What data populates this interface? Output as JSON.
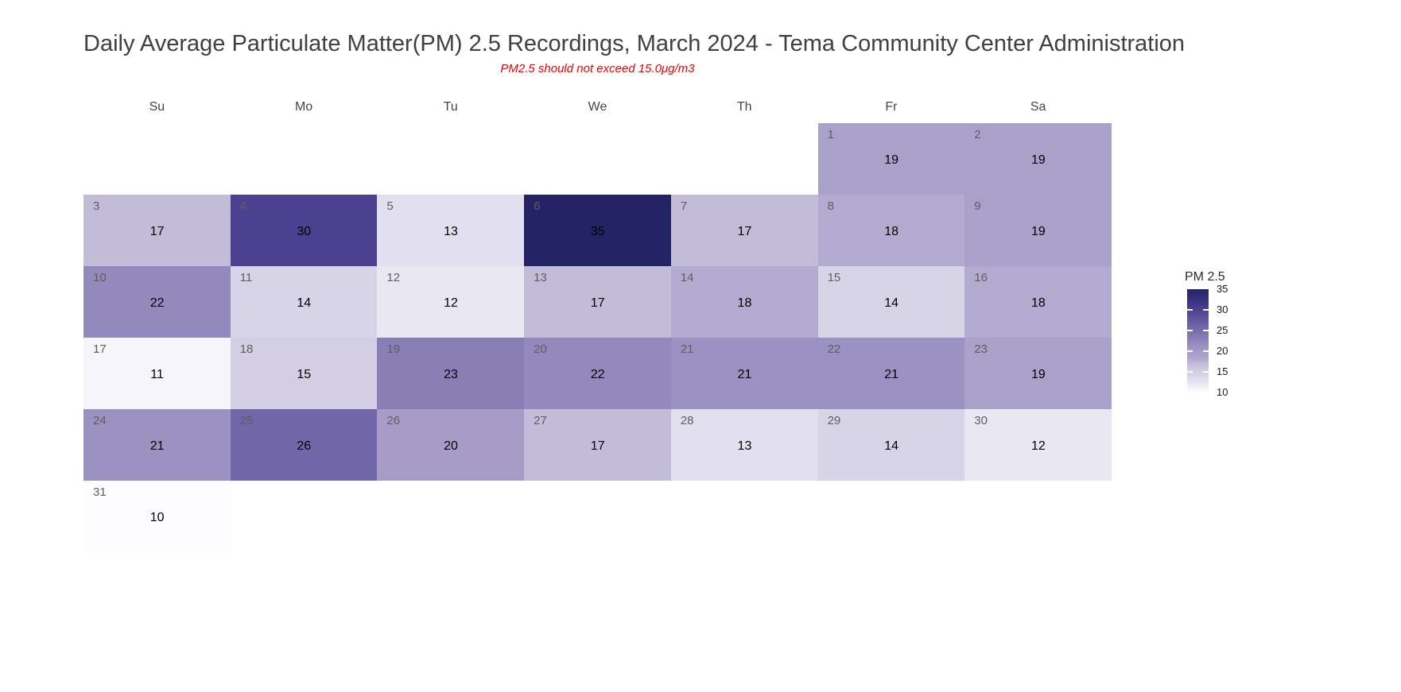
{
  "title": "Daily Average Particulate Matter(PM) 2.5 Recordings, March 2024 - Tema Community Center Administration",
  "subtitle": "PM2.5 should not exceed 15.0μg/m3",
  "colors": {
    "title_text": "#404040",
    "subtitle_text": "#f00000",
    "weekday_header_text": "#454545",
    "day_number_text": "#5e5e5e",
    "value_text": "#000000",
    "background": "#ffffff"
  },
  "chart_data": {
    "type": "heatmap",
    "subtype": "calendar-month",
    "title": "Daily Average Particulate Matter(PM) 2.5 Recordings, March 2024 - Tema Community Center Administration",
    "subtitle": "PM2.5 should not exceed 15.0μg/m3",
    "month": "March",
    "year": 2024,
    "value_name": "PM 2.5",
    "unit": "μg/m3",
    "threshold": 15.0,
    "grid": false,
    "weekday_headers": [
      "Su",
      "Mo",
      "Tu",
      "We",
      "Th",
      "Fr",
      "Sa"
    ],
    "days": [
      {
        "day": 1,
        "week": 0,
        "dow": 5,
        "value": 19
      },
      {
        "day": 2,
        "week": 0,
        "dow": 6,
        "value": 19
      },
      {
        "day": 3,
        "week": 1,
        "dow": 0,
        "value": 17
      },
      {
        "day": 4,
        "week": 1,
        "dow": 1,
        "value": 30
      },
      {
        "day": 5,
        "week": 1,
        "dow": 2,
        "value": 13
      },
      {
        "day": 6,
        "week": 1,
        "dow": 3,
        "value": 35
      },
      {
        "day": 7,
        "week": 1,
        "dow": 4,
        "value": 17
      },
      {
        "day": 8,
        "week": 1,
        "dow": 5,
        "value": 18
      },
      {
        "day": 9,
        "week": 1,
        "dow": 6,
        "value": 19
      },
      {
        "day": 10,
        "week": 2,
        "dow": 0,
        "value": 22
      },
      {
        "day": 11,
        "week": 2,
        "dow": 1,
        "value": 14
      },
      {
        "day": 12,
        "week": 2,
        "dow": 2,
        "value": 12
      },
      {
        "day": 13,
        "week": 2,
        "dow": 3,
        "value": 17
      },
      {
        "day": 14,
        "week": 2,
        "dow": 4,
        "value": 18
      },
      {
        "day": 15,
        "week": 2,
        "dow": 5,
        "value": 14
      },
      {
        "day": 16,
        "week": 2,
        "dow": 6,
        "value": 18
      },
      {
        "day": 17,
        "week": 3,
        "dow": 0,
        "value": 11
      },
      {
        "day": 18,
        "week": 3,
        "dow": 1,
        "value": 15
      },
      {
        "day": 19,
        "week": 3,
        "dow": 2,
        "value": 23
      },
      {
        "day": 20,
        "week": 3,
        "dow": 3,
        "value": 22
      },
      {
        "day": 21,
        "week": 3,
        "dow": 4,
        "value": 21
      },
      {
        "day": 22,
        "week": 3,
        "dow": 5,
        "value": 21
      },
      {
        "day": 23,
        "week": 3,
        "dow": 6,
        "value": 19
      },
      {
        "day": 24,
        "week": 4,
        "dow": 0,
        "value": 21
      },
      {
        "day": 25,
        "week": 4,
        "dow": 1,
        "value": 26
      },
      {
        "day": 26,
        "week": 4,
        "dow": 2,
        "value": 20
      },
      {
        "day": 27,
        "week": 4,
        "dow": 3,
        "value": 17
      },
      {
        "day": 28,
        "week": 4,
        "dow": 4,
        "value": 13
      },
      {
        "day": 29,
        "week": 4,
        "dow": 5,
        "value": 14
      },
      {
        "day": 30,
        "week": 4,
        "dow": 6,
        "value": 12
      },
      {
        "day": 31,
        "week": 5,
        "dow": 0,
        "value": 10
      }
    ],
    "color_scale": {
      "10": "#fdfcfe",
      "11": "#f6f5fa",
      "12": "#e9e7f2",
      "13": "#e2dfee",
      "14": "#d8d4e7",
      "15": "#d3cee4",
      "17": "#c3bcd9",
      "18": "#b3aad0",
      "19": "#aaa1cb",
      "20": "#a79cc7",
      "21": "#9c92c1",
      "22": "#9489bd",
      "23": "#8a7fb5",
      "26": "#7166a7",
      "30": "#4c4191",
      "35": "#232366"
    },
    "legend": {
      "title": "PM 2.5",
      "ticks": [
        35,
        30,
        25,
        20,
        15,
        10
      ],
      "domain": [
        10,
        35
      ],
      "position": "right"
    }
  }
}
